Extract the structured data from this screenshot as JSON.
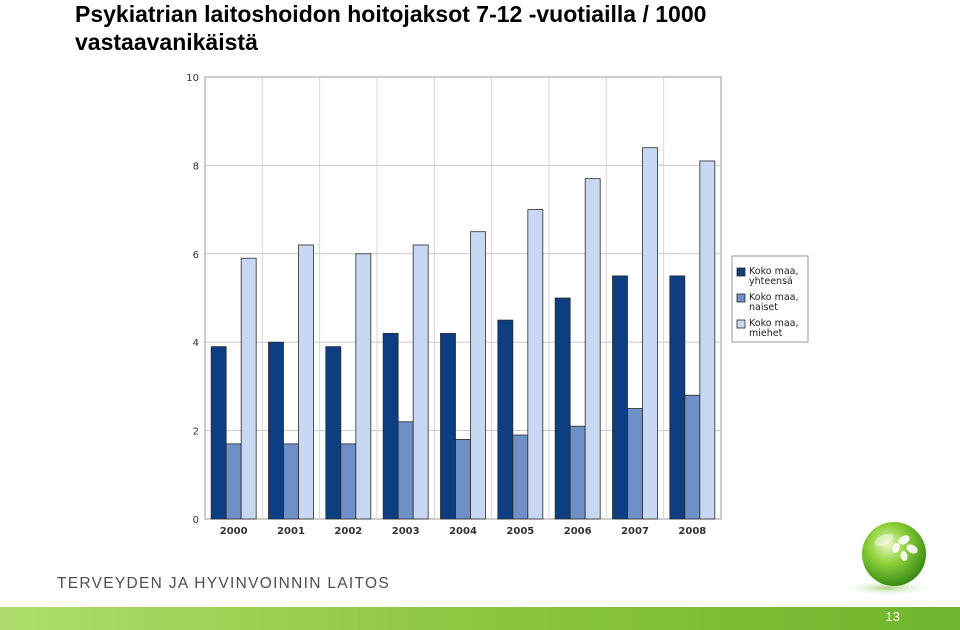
{
  "slide": {
    "title": "Psykiatrian laitoshoidon hoitojaksot 7-12 -vuotiailla / 1000 vastaavanikäistä",
    "organization": "TERVEYDEN JA HYVINVOINNIN LAITOS",
    "page_number": "13",
    "accent_color": "#8cc63e"
  },
  "chart_data": {
    "type": "bar",
    "title": "",
    "xlabel": "",
    "ylabel": "",
    "categories": [
      "2000",
      "2001",
      "2002",
      "2003",
      "2004",
      "2005",
      "2006",
      "2007",
      "2008"
    ],
    "ylim": [
      0,
      10
    ],
    "yticks": [
      "0",
      "2",
      "4",
      "6",
      "8",
      "10"
    ],
    "grid": true,
    "legend_position": "right",
    "series": [
      {
        "name": "Koko maa, yhteensä",
        "legend_lines": [
          "Koko maa,",
          "yhteensä"
        ],
        "color": "#0e3e82",
        "values": [
          3.9,
          4.0,
          3.9,
          4.2,
          4.2,
          4.5,
          5.0,
          5.5,
          5.5
        ]
      },
      {
        "name": "Koko maa, naiset",
        "legend_lines": [
          "Koko maa,",
          "naiset"
        ],
        "color": "#6f8fc7",
        "values": [
          1.7,
          1.7,
          1.7,
          2.2,
          1.8,
          1.9,
          2.1,
          2.5,
          2.8
        ]
      },
      {
        "name": "Koko maa, miehet",
        "legend_lines": [
          "Koko maa,",
          "miehet"
        ],
        "color": "#c9d8f2",
        "values": [
          5.9,
          6.2,
          6.0,
          6.2,
          6.5,
          7.0,
          7.7,
          8.4,
          8.1
        ]
      }
    ]
  }
}
